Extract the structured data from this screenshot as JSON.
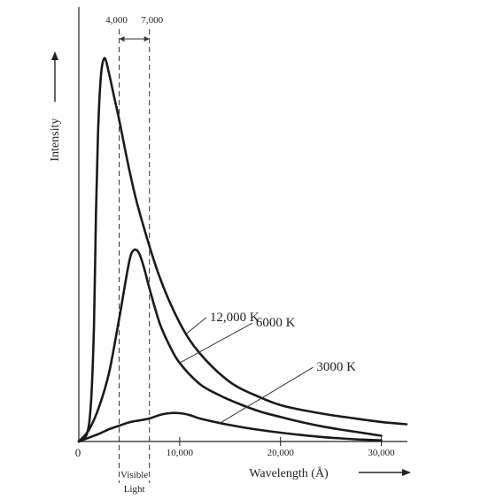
{
  "chart_data": {
    "type": "line",
    "title": "",
    "xlabel": "Wavelength  (Å)",
    "ylabel": "Intensity",
    "xlim": [
      0,
      32500
    ],
    "ylim": [
      0,
      100
    ],
    "origin_label": "0",
    "xticks": [
      {
        "value": 10000,
        "label": "10,000"
      },
      {
        "value": 20000,
        "label": "20,000"
      },
      {
        "value": 30000,
        "label": "30,000"
      }
    ],
    "visible_band": {
      "start": 4000,
      "end": 7000,
      "start_label": "4,000",
      "end_label": "7,000",
      "label_line1": "Visible",
      "label_line2": "Light"
    },
    "grid": false,
    "legend": "none",
    "series": [
      {
        "name": "12,000 K",
        "x": [
          0,
          800,
          1200,
          1500,
          1700,
          1900,
          2100,
          2300,
          2600,
          3000,
          3500,
          4000,
          5000,
          6000,
          8000,
          10000,
          12000,
          15000,
          18000,
          20000,
          22000,
          25000,
          28000,
          30000,
          32500
        ],
        "values": [
          0,
          2,
          10,
          30,
          60,
          80,
          92,
          98,
          100,
          96,
          90,
          84,
          71,
          60,
          43,
          31,
          23,
          15.5,
          11.5,
          9.5,
          8.3,
          6.9,
          5.8,
          5.1,
          4.5
        ]
      },
      {
        "name": "6000 K",
        "x": [
          0,
          1000,
          2000,
          3000,
          4000,
          5000,
          5500,
          6000,
          6500,
          7000,
          8000,
          9000,
          10000,
          12000,
          14000,
          16000,
          18000,
          20000,
          22000,
          24000,
          26000,
          28000,
          30000
        ],
        "values": [
          0,
          3,
          9,
          18,
          32,
          47,
          50,
          49,
          45,
          40,
          31,
          25,
          20.5,
          15,
          12,
          9.7,
          7.8,
          6.4,
          5.1,
          4,
          3.1,
          2.3,
          1.5
        ]
      },
      {
        "name": "3000 K",
        "x": [
          0,
          1000,
          2000,
          3000,
          4000,
          5000,
          6000,
          7000,
          8000,
          9000,
          10000,
          11000,
          12000,
          14000,
          16000,
          18000,
          20000,
          22000,
          24000,
          26000,
          28000,
          30000
        ],
        "values": [
          0,
          1,
          2,
          3.2,
          4.1,
          5,
          5.5,
          6,
          6.9,
          7.4,
          7.4,
          6.9,
          6,
          4.8,
          3.8,
          3,
          2.3,
          1.7,
          1.2,
          0.8,
          0.5,
          0.3
        ]
      }
    ],
    "annotations": [
      {
        "text": "12,000 K",
        "series": 0,
        "at_x": 10700
      },
      {
        "text": "6000 K",
        "series": 1,
        "at_x": 10000
      },
      {
        "text": "3000 K",
        "series": 2,
        "at_x": 14000
      }
    ]
  }
}
